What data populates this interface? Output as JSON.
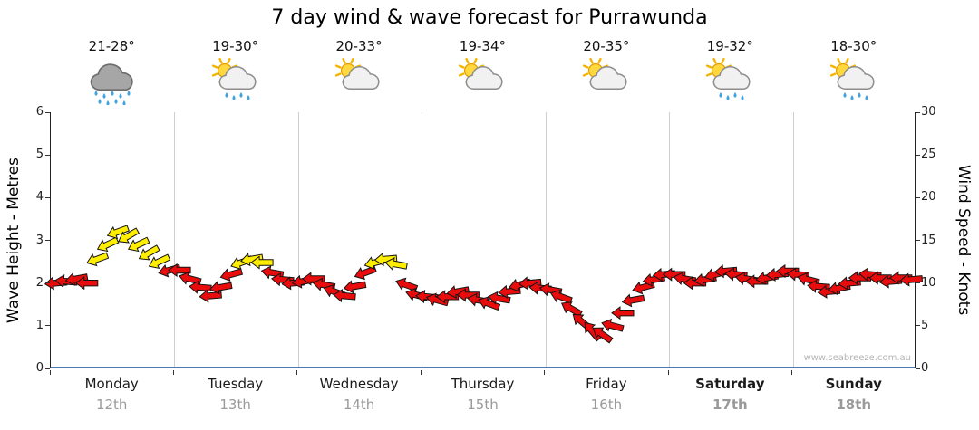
{
  "title": "7 day wind & wave forecast for Purrawunda",
  "watermark": "www.seabreeze.com.au",
  "days": [
    {
      "name": "Monday",
      "date": "12th",
      "temp": "21-28°",
      "icon": "rain-cloud",
      "bold": false
    },
    {
      "name": "Tuesday",
      "date": "13th",
      "temp": "19-30°",
      "icon": "sun-cloud-rain",
      "bold": false
    },
    {
      "name": "Wednesday",
      "date": "14th",
      "temp": "20-33°",
      "icon": "sun-cloud",
      "bold": false
    },
    {
      "name": "Thursday",
      "date": "15th",
      "temp": "19-34°",
      "icon": "sun-cloud",
      "bold": false
    },
    {
      "name": "Friday",
      "date": "16th",
      "temp": "20-35°",
      "icon": "sun-cloud",
      "bold": false
    },
    {
      "name": "Saturday",
      "date": "17th",
      "temp": "19-32°",
      "icon": "sun-cloud-rain",
      "bold": true
    },
    {
      "name": "Sunday",
      "date": "18th",
      "temp": "18-30°",
      "icon": "sun-cloud-rain",
      "bold": true
    }
  ],
  "chart_data": {
    "type": "wind-arrow-band",
    "title": "7 day wind & wave forecast for Purrawunda",
    "left_axis": {
      "label": "Wave Height - Metres",
      "min": 0,
      "max": 6,
      "ticks": [
        0,
        1,
        2,
        3,
        4,
        5,
        6
      ]
    },
    "right_axis": {
      "label": "Wind Speed - Knots",
      "min": 0,
      "max": 30,
      "ticks": [
        0,
        5,
        10,
        15,
        20,
        25,
        30
      ]
    },
    "x_categories": [
      "Monday 12th",
      "Tuesday 13th",
      "Wednesday 14th",
      "Thursday 15th",
      "Friday 16th",
      "Saturday 17th",
      "Sunday 18th"
    ],
    "points_per_day": 12,
    "wind_speed_knots": [
      10,
      10.2,
      10.5,
      10,
      12.8,
      14.5,
      16,
      15.5,
      14.5,
      13.5,
      12.5,
      11.5,
      11.5,
      10.5,
      9.5,
      8.5,
      9.5,
      11,
      12.4,
      12.8,
      12.4,
      11.2,
      10.4,
      10,
      10.2,
      10.5,
      9.8,
      9,
      8.5,
      9.6,
      11.2,
      12.4,
      12.8,
      12.2,
      9.8,
      8.6,
      8.4,
      8,
      8.4,
      9,
      8.6,
      8,
      7.6,
      8.2,
      9,
      9.8,
      10,
      9.4,
      9.2,
      8.4,
      7,
      5.5,
      4.4,
      4,
      5,
      6.5,
      8,
      9.5,
      10.4,
      11,
      11,
      10.5,
      10,
      10.4,
      11,
      11.4,
      11,
      10.5,
      10.2,
      10.6,
      11,
      11.4,
      11,
      10.4,
      9.6,
      9,
      9.4,
      10,
      10.6,
      11,
      10.6,
      10.2,
      10.6,
      10.4
    ],
    "wind_direction_deg_screen": [
      175,
      185,
      170,
      180,
      160,
      155,
      160,
      150,
      155,
      150,
      155,
      165,
      180,
      195,
      185,
      175,
      170,
      165,
      160,
      170,
      180,
      190,
      185,
      175,
      170,
      180,
      190,
      200,
      185,
      170,
      160,
      165,
      175,
      190,
      200,
      195,
      185,
      195,
      180,
      170,
      180,
      190,
      200,
      190,
      175,
      165,
      175,
      185,
      190,
      200,
      210,
      220,
      230,
      215,
      195,
      180,
      170,
      165,
      170,
      175,
      180,
      190,
      180,
      170,
      165,
      175,
      185,
      190,
      180,
      170,
      175,
      180,
      185,
      195,
      185,
      175,
      170,
      175,
      180,
      185,
      180,
      175,
      180,
      175
    ],
    "colors": {
      "arrow_normal": "#e80c0c",
      "arrow_strong": "#ffee00",
      "strong_threshold_knots": 12,
      "axis_bottom": "#4a7ab5",
      "day_separator": "#cfcfcf"
    },
    "grid": {
      "day_separators": true,
      "horizontal_gridlines": false,
      "legend": "none"
    }
  }
}
